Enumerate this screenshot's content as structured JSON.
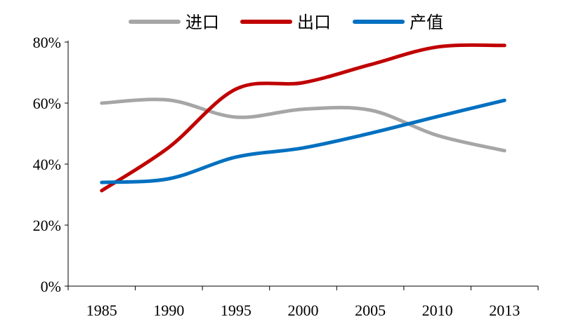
{
  "chart_data": {
    "type": "line",
    "title": "",
    "xlabel": "",
    "ylabel": "",
    "categories": [
      "1985",
      "1990",
      "1995",
      "2000",
      "2005",
      "2010",
      "2013"
    ],
    "ylim": [
      0,
      80
    ],
    "yticks": [
      0,
      20,
      40,
      60,
      80
    ],
    "ytick_labels": [
      "0%",
      "20%",
      "40%",
      "60%",
      "80%"
    ],
    "grid": false,
    "smooth": true,
    "legend_position": "top",
    "series": [
      {
        "name": "进口",
        "color": "#a6a6a6",
        "values": [
          60,
          61,
          55.4,
          58,
          57.7,
          49.4,
          44.4
        ]
      },
      {
        "name": "出口",
        "color": "#c00000",
        "values": [
          31.3,
          45.5,
          64.6,
          66.7,
          72.6,
          78.4,
          78.9
        ]
      },
      {
        "name": "产值",
        "color": "#0070c0",
        "values": [
          34,
          35.2,
          42.3,
          45.3,
          50.1,
          55.6,
          60.9
        ]
      }
    ]
  }
}
